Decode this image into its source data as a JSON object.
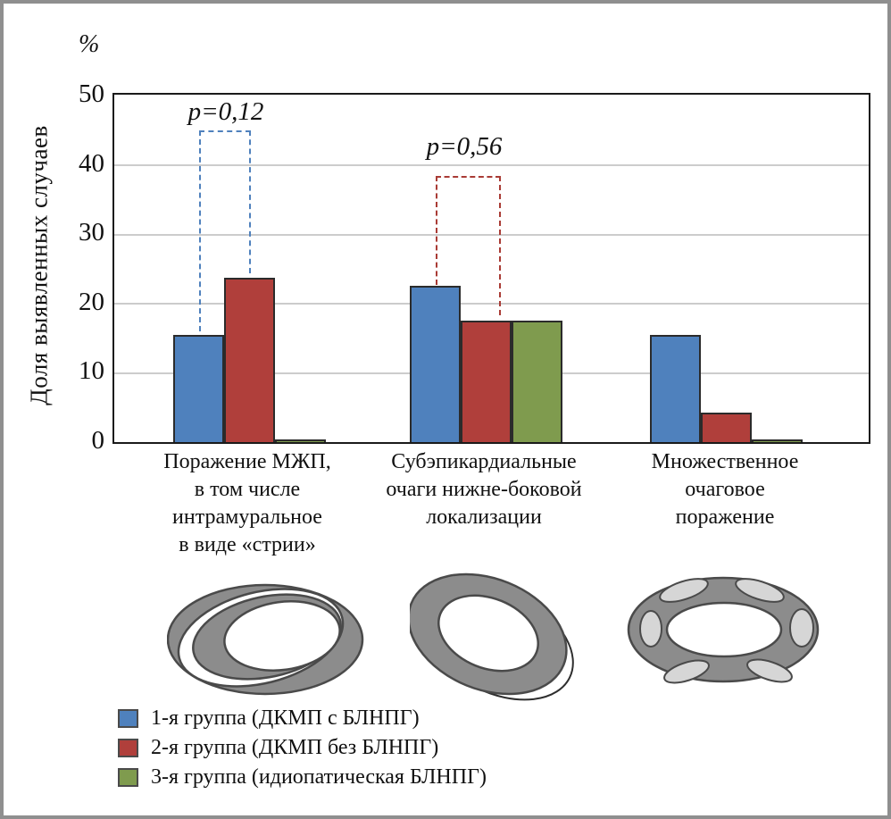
{
  "chart_data": {
    "type": "bar",
    "title": "",
    "unit": "%",
    "ylabel": "Доля выявленных случаев",
    "xlabel": "",
    "ylim": [
      0,
      50
    ],
    "yticks": [
      0,
      10,
      20,
      30,
      40,
      50
    ],
    "y_tick_labels": [
      "50",
      "40",
      "30",
      "20",
      "10",
      "0"
    ],
    "grid": true,
    "legend_position": "bottom-left",
    "categories": [
      "Поражение МЖП,\nв том числе\nинтрамуральное\nв виде «стрии»",
      "Субэпикардиальные\nочаги нижне-боковой\nлокализации",
      "Множественное\nочаговое\nпоражение"
    ],
    "series": [
      {
        "name": "1-я группа (ДКМП с БЛНПГ)",
        "color": "#4F81BD",
        "values": [
          15.4,
          22.5,
          15.4
        ]
      },
      {
        "name": "2-я группа (ДКМП без БЛНПГ)",
        "color": "#B03F3B",
        "values": [
          23.7,
          17.5,
          4.3
        ]
      },
      {
        "name": "3-я группа (идиопатическая БЛНПГ)",
        "color": "#7F9B4E",
        "values": [
          0.4,
          17.5,
          0.4
        ]
      }
    ],
    "annotations": [
      {
        "label": "p=0,12",
        "color": "#4F81BD",
        "category_index": 0,
        "compares": [
          "1-я группа",
          "2-я группа"
        ]
      },
      {
        "label": "p=0,56",
        "color": "#A93B35",
        "category_index": 1,
        "compares": [
          "1-я группа",
          "2-я группа"
        ]
      }
    ]
  },
  "diagrams": [
    {
      "name": "septal-intramural-stria-schematic"
    },
    {
      "name": "subepicardial-inferolateral-foci-schematic"
    },
    {
      "name": "multiple-focal-lesions-schematic"
    }
  ],
  "colors": {
    "figure_border": "#8f8f8f",
    "gridline": "#cccccc",
    "diagram_gray": "#8c8c8c",
    "diagram_outline": "#4a4a4a",
    "diagram_spot": "#d6d6d6"
  }
}
